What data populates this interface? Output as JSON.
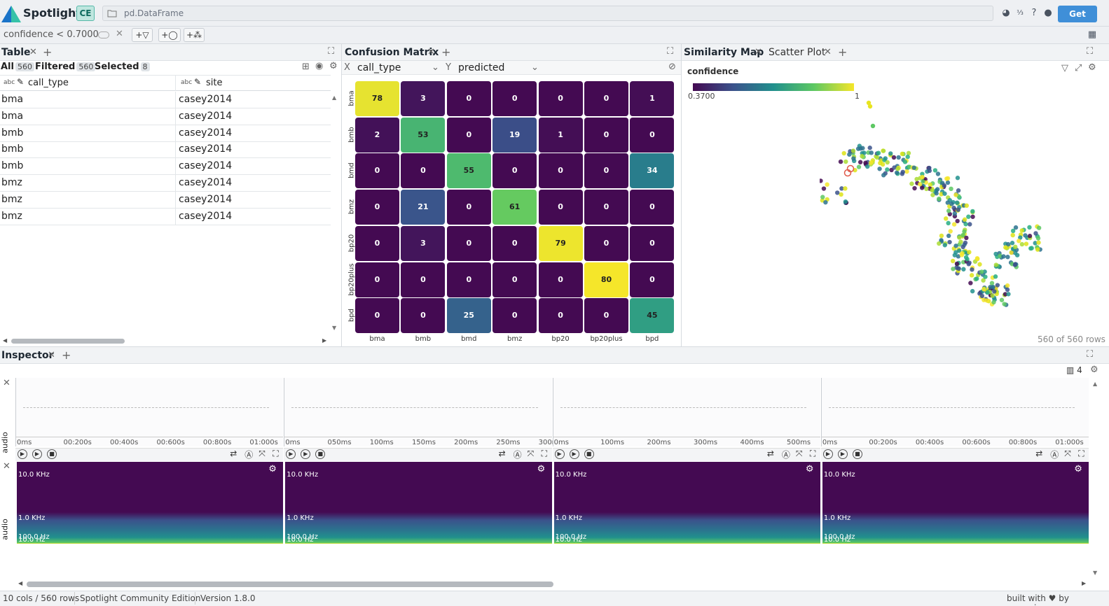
{
  "app": {
    "name": "Spotlight",
    "badge": "CE",
    "dataframe": "pd.DataFrame",
    "get_pro": "Get PRO"
  },
  "filter": {
    "expression": "confidence < 0.7000",
    "buttons": [
      "+filter",
      "+similar",
      "+tag"
    ]
  },
  "table_panel": {
    "tab": "Table",
    "all_label": "All",
    "all_count": "560",
    "filtered_label": "Filtered",
    "filtered_count": "560",
    "selected_label": "Selected",
    "selected_count": "8",
    "columns": [
      {
        "type": "abc",
        "name": "call_type"
      },
      {
        "type": "abc",
        "name": "site"
      }
    ],
    "rows": [
      [
        "bma",
        "casey2014"
      ],
      [
        "bma",
        "casey2014"
      ],
      [
        "bmb",
        "casey2014"
      ],
      [
        "bmb",
        "casey2014"
      ],
      [
        "bmb",
        "casey2014"
      ],
      [
        "bmz",
        "casey2014"
      ],
      [
        "bmz",
        "casey2014"
      ],
      [
        "bmz",
        "casey2014"
      ]
    ]
  },
  "confusion_panel": {
    "tab": "Confusion Matrix",
    "x_label": "X",
    "x_column": "call_type",
    "y_label": "Y",
    "y_column": "predicted"
  },
  "chart_data": {
    "type": "heatmap",
    "rows": [
      "bma",
      "bmb",
      "bmd",
      "bmz",
      "bp20",
      "bp20plus",
      "bpd"
    ],
    "columns": [
      "bma",
      "bmb",
      "bmd",
      "bmz",
      "bp20",
      "bp20plus",
      "bpd"
    ],
    "values": [
      [
        78,
        3,
        0,
        0,
        0,
        0,
        1
      ],
      [
        2,
        53,
        0,
        19,
        1,
        0,
        0
      ],
      [
        0,
        0,
        55,
        0,
        0,
        0,
        34
      ],
      [
        0,
        21,
        0,
        61,
        0,
        0,
        0
      ],
      [
        0,
        3,
        0,
        0,
        79,
        0,
        0
      ],
      [
        0,
        0,
        0,
        0,
        0,
        80,
        0
      ],
      [
        0,
        0,
        25,
        0,
        0,
        0,
        45
      ]
    ]
  },
  "similarity_panel": {
    "tab_active": "Similarity Map",
    "tab_other": "Scatter Plot",
    "color_by": "confidence",
    "legend_min": "0.3700",
    "legend_max": "1",
    "rows_info": "560 of 560 rows"
  },
  "inspector": {
    "tab": "Inspector",
    "columns_count": "4",
    "audio_label": "audio",
    "waveforms": [
      {
        "ticks": [
          "0ms",
          "00:200s",
          "00:400s",
          "00:600s",
          "00:800s",
          "01:000s"
        ]
      },
      {
        "ticks": [
          "0ms",
          "050ms",
          "100ms",
          "150ms",
          "200ms",
          "250ms",
          "300ms"
        ]
      },
      {
        "ticks": [
          "0ms",
          "100ms",
          "200ms",
          "300ms",
          "400ms",
          "500ms"
        ]
      },
      {
        "ticks": [
          "0ms",
          "00:200s",
          "00:400s",
          "00:600s",
          "00:800s",
          "01:000s"
        ]
      }
    ],
    "freq_labels": [
      "10.0 KHz",
      "1.0 KHz",
      "100.0 Hz",
      "10.0 Hz"
    ]
  },
  "footer": {
    "cols_rows": "10 cols / 560 rows",
    "edition": "Spotlight Community Edition",
    "version": "Version 1.8.0",
    "built_with": "built with ♥ by renumics"
  },
  "colors": {
    "accent": "#3f8fd8",
    "viridis_low": "#440a52",
    "viridis_high": "#f5e62a"
  }
}
